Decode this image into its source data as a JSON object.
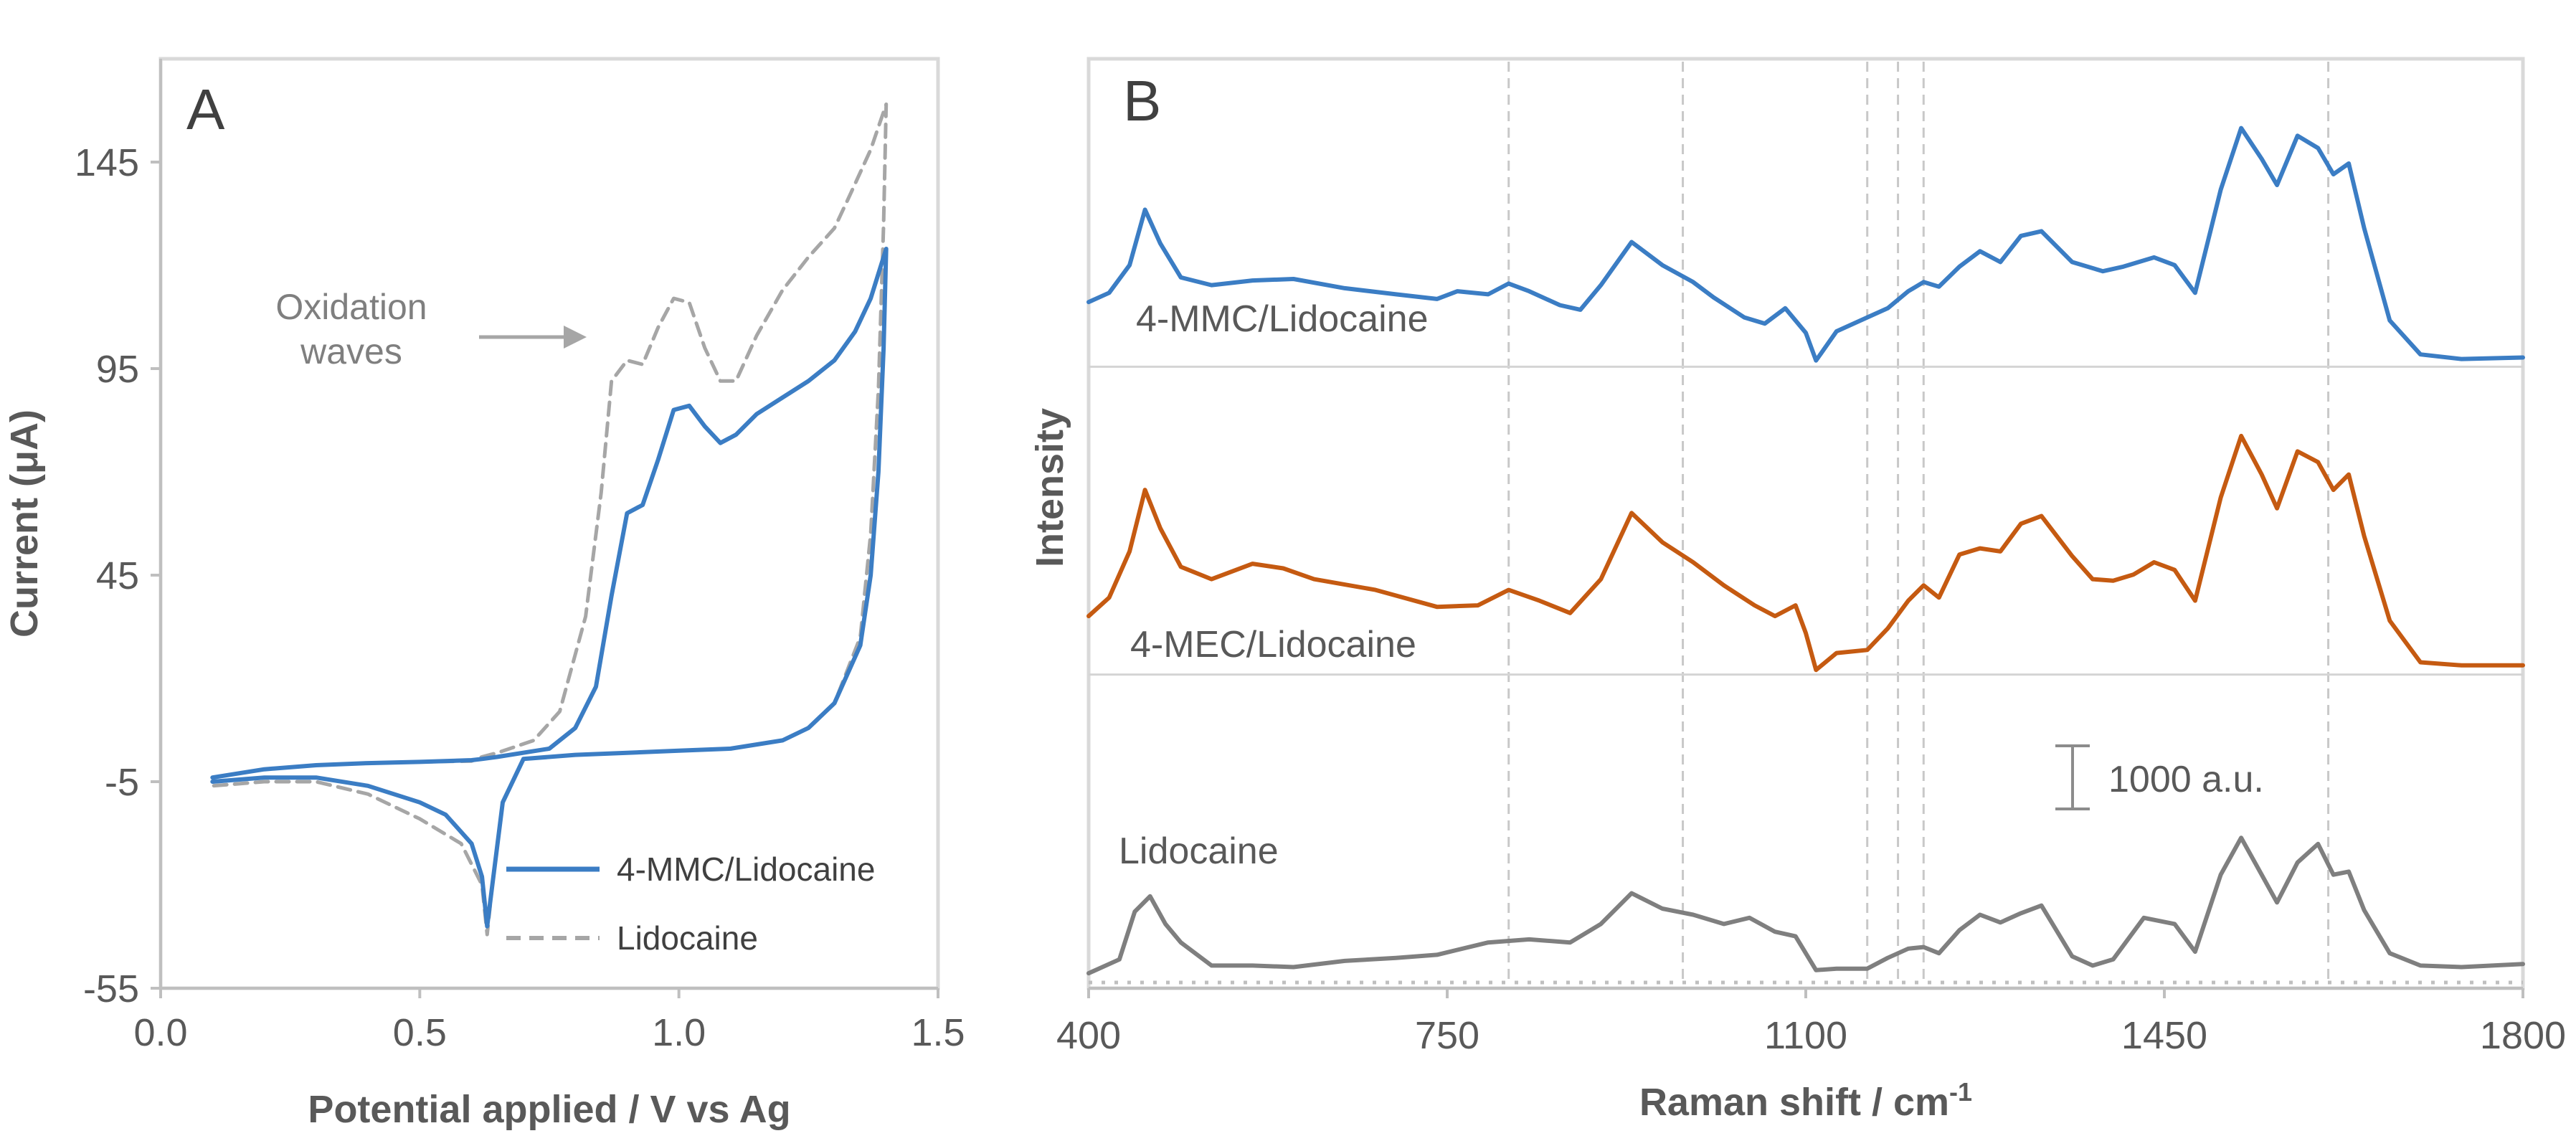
{
  "chart_data": [
    {
      "panel": "A",
      "type": "line",
      "xlabel": "Potential applied / V vs Ag",
      "ylabel": "Current (μA)",
      "xlim": [
        0.0,
        1.5
      ],
      "ylim": [
        -55,
        170
      ],
      "x_ticks": [
        "0.0",
        "0.5",
        "1.0",
        "1.5"
      ],
      "y_ticks": [
        "-55",
        "-5",
        "45",
        "95",
        "145"
      ],
      "grid": false,
      "legend_position": "bottom-right",
      "annotations": {
        "line1": "Oxidation",
        "line2": "waves"
      },
      "series": [
        {
          "name": "4-MMC/Lidocaine",
          "color": "#3b7dc4",
          "dash": "solid",
          "points": [
            [
              0.1,
              -4
            ],
            [
              0.2,
              -2
            ],
            [
              0.3,
              -1
            ],
            [
              0.4,
              -0.5
            ],
            [
              0.5,
              -0.2
            ],
            [
              0.6,
              0.2
            ],
            [
              0.62,
              0.5
            ],
            [
              0.65,
              1
            ],
            [
              0.75,
              3
            ],
            [
              0.8,
              8
            ],
            [
              0.84,
              18
            ],
            [
              0.87,
              40
            ],
            [
              0.9,
              60
            ],
            [
              0.93,
              62
            ],
            [
              0.96,
              73
            ],
            [
              0.99,
              85
            ],
            [
              1.02,
              86
            ],
            [
              1.05,
              81
            ],
            [
              1.08,
              77
            ],
            [
              1.11,
              79
            ],
            [
              1.15,
              84
            ],
            [
              1.2,
              88
            ],
            [
              1.25,
              92
            ],
            [
              1.3,
              97
            ],
            [
              1.34,
              104
            ],
            [
              1.37,
              112
            ],
            [
              1.4,
              124
            ],
            [
              1.395,
              100
            ],
            [
              1.385,
              70
            ],
            [
              1.37,
              45
            ],
            [
              1.35,
              28
            ],
            [
              1.3,
              14
            ],
            [
              1.25,
              8
            ],
            [
              1.2,
              5
            ],
            [
              1.1,
              3
            ],
            [
              1.0,
              2.5
            ],
            [
              0.9,
              2
            ],
            [
              0.8,
              1.5
            ],
            [
              0.7,
              0.5
            ],
            [
              0.66,
              -10
            ],
            [
              0.64,
              -30
            ],
            [
              0.63,
              -40
            ],
            [
              0.62,
              -28
            ],
            [
              0.6,
              -20
            ],
            [
              0.55,
              -13
            ],
            [
              0.5,
              -10
            ],
            [
              0.4,
              -6
            ],
            [
              0.3,
              -4
            ],
            [
              0.2,
              -4
            ],
            [
              0.1,
              -5
            ]
          ]
        },
        {
          "name": "Lidocaine",
          "color": "#a6a6a6",
          "dash": "dashed",
          "points": [
            [
              0.1,
              -4
            ],
            [
              0.2,
              -2
            ],
            [
              0.3,
              -1
            ],
            [
              0.4,
              -0.5
            ],
            [
              0.5,
              -0.2
            ],
            [
              0.6,
              0
            ],
            [
              0.62,
              1
            ],
            [
              0.65,
              2
            ],
            [
              0.72,
              5
            ],
            [
              0.77,
              12
            ],
            [
              0.82,
              35
            ],
            [
              0.85,
              65
            ],
            [
              0.87,
              92
            ],
            [
              0.9,
              97
            ],
            [
              0.93,
              96
            ],
            [
              0.96,
              105
            ],
            [
              0.99,
              112
            ],
            [
              1.02,
              111
            ],
            [
              1.05,
              100
            ],
            [
              1.08,
              92
            ],
            [
              1.11,
              92
            ],
            [
              1.15,
              103
            ],
            [
              1.2,
              114
            ],
            [
              1.25,
              122
            ],
            [
              1.3,
              129
            ],
            [
              1.33,
              137
            ],
            [
              1.37,
              148
            ],
            [
              1.4,
              159
            ],
            [
              1.395,
              130
            ],
            [
              1.385,
              90
            ],
            [
              1.37,
              55
            ],
            [
              1.35,
              30
            ],
            [
              1.3,
              14
            ],
            [
              1.25,
              8
            ],
            [
              1.2,
              5
            ],
            [
              1.1,
              3
            ],
            [
              1.0,
              2.5
            ],
            [
              0.9,
              2
            ],
            [
              0.8,
              1.5
            ],
            [
              0.7,
              0.5
            ],
            [
              0.66,
              -10
            ],
            [
              0.64,
              -30
            ],
            [
              0.63,
              -42
            ],
            [
              0.62,
              -30
            ],
            [
              0.58,
              -20
            ],
            [
              0.5,
              -14
            ],
            [
              0.4,
              -8
            ],
            [
              0.3,
              -5
            ],
            [
              0.2,
              -5
            ],
            [
              0.1,
              -6
            ]
          ]
        }
      ]
    },
    {
      "panel": "B",
      "type": "line",
      "xlabel": "Raman shift / cm",
      "xlabel_superscript": "-1",
      "ylabel": "Intensity",
      "xlim": [
        400,
        1800
      ],
      "ylim": [
        0,
        6000
      ],
      "x_ticks": [
        "400",
        "750",
        "1100",
        "1450",
        "1800"
      ],
      "grid": false,
      "reference_lines_x": [
        810,
        980,
        1160,
        1190,
        1215,
        1610
      ],
      "scale_bar": {
        "value": 1000,
        "label": "1000 a.u."
      },
      "series": [
        {
          "name": "4-MMC/Lidocaine",
          "color": "#3b7dc4",
          "baseline": 4000,
          "points": [
            [
              400,
              4420
            ],
            [
              420,
              4480
            ],
            [
              440,
              4660
            ],
            [
              455,
              5020
            ],
            [
              470,
              4800
            ],
            [
              490,
              4580
            ],
            [
              520,
              4530
            ],
            [
              560,
              4560
            ],
            [
              600,
              4570
            ],
            [
              650,
              4510
            ],
            [
              700,
              4470
            ],
            [
              740,
              4440
            ],
            [
              760,
              4490
            ],
            [
              790,
              4470
            ],
            [
              810,
              4540
            ],
            [
              830,
              4490
            ],
            [
              860,
              4400
            ],
            [
              880,
              4370
            ],
            [
              900,
              4530
            ],
            [
              930,
              4810
            ],
            [
              960,
              4660
            ],
            [
              990,
              4550
            ],
            [
              1010,
              4450
            ],
            [
              1040,
              4320
            ],
            [
              1060,
              4280
            ],
            [
              1080,
              4380
            ],
            [
              1100,
              4220
            ],
            [
              1110,
              4040
            ],
            [
              1130,
              4230
            ],
            [
              1160,
              4320
            ],
            [
              1180,
              4380
            ],
            [
              1200,
              4490
            ],
            [
              1215,
              4550
            ],
            [
              1230,
              4520
            ],
            [
              1250,
              4650
            ],
            [
              1270,
              4750
            ],
            [
              1290,
              4680
            ],
            [
              1310,
              4850
            ],
            [
              1330,
              4880
            ],
            [
              1360,
              4680
            ],
            [
              1390,
              4620
            ],
            [
              1410,
              4650
            ],
            [
              1440,
              4710
            ],
            [
              1460,
              4660
            ],
            [
              1480,
              4480
            ],
            [
              1505,
              5150
            ],
            [
              1525,
              5550
            ],
            [
              1545,
              5350
            ],
            [
              1560,
              5180
            ],
            [
              1580,
              5500
            ],
            [
              1600,
              5420
            ],
            [
              1615,
              5250
            ],
            [
              1630,
              5320
            ],
            [
              1645,
              4900
            ],
            [
              1670,
              4300
            ],
            [
              1700,
              4080
            ],
            [
              1740,
              4050
            ],
            [
              1800,
              4060
            ]
          ]
        },
        {
          "name": "4-MEC/Lidocaine",
          "color": "#c55a11",
          "baseline": 2000,
          "points": [
            [
              400,
              2380
            ],
            [
              420,
              2500
            ],
            [
              440,
              2800
            ],
            [
              455,
              3200
            ],
            [
              470,
              2950
            ],
            [
              490,
              2700
            ],
            [
              520,
              2620
            ],
            [
              560,
              2720
            ],
            [
              590,
              2690
            ],
            [
              620,
              2620
            ],
            [
              680,
              2550
            ],
            [
              740,
              2440
            ],
            [
              780,
              2450
            ],
            [
              810,
              2550
            ],
            [
              840,
              2480
            ],
            [
              870,
              2400
            ],
            [
              900,
              2620
            ],
            [
              930,
              3050
            ],
            [
              960,
              2860
            ],
            [
              990,
              2730
            ],
            [
              1020,
              2580
            ],
            [
              1050,
              2450
            ],
            [
              1070,
              2380
            ],
            [
              1090,
              2450
            ],
            [
              1100,
              2270
            ],
            [
              1110,
              2030
            ],
            [
              1130,
              2140
            ],
            [
              1160,
              2160
            ],
            [
              1180,
              2300
            ],
            [
              1200,
              2480
            ],
            [
              1215,
              2580
            ],
            [
              1230,
              2500
            ],
            [
              1250,
              2780
            ],
            [
              1270,
              2820
            ],
            [
              1290,
              2800
            ],
            [
              1310,
              2980
            ],
            [
              1330,
              3030
            ],
            [
              1360,
              2770
            ],
            [
              1380,
              2620
            ],
            [
              1400,
              2610
            ],
            [
              1420,
              2650
            ],
            [
              1440,
              2730
            ],
            [
              1460,
              2680
            ],
            [
              1480,
              2480
            ],
            [
              1505,
              3150
            ],
            [
              1525,
              3550
            ],
            [
              1545,
              3300
            ],
            [
              1560,
              3080
            ],
            [
              1580,
              3450
            ],
            [
              1600,
              3380
            ],
            [
              1615,
              3200
            ],
            [
              1630,
              3300
            ],
            [
              1645,
              2900
            ],
            [
              1670,
              2350
            ],
            [
              1700,
              2080
            ],
            [
              1740,
              2060
            ],
            [
              1800,
              2060
            ]
          ]
        },
        {
          "name": "Lidocaine",
          "color": "#7f7f7f",
          "baseline": 0,
          "points": [
            [
              400,
              60
            ],
            [
              430,
              150
            ],
            [
              445,
              460
            ],
            [
              460,
              560
            ],
            [
              475,
              380
            ],
            [
              490,
              260
            ],
            [
              520,
              110
            ],
            [
              560,
              110
            ],
            [
              600,
              100
            ],
            [
              650,
              140
            ],
            [
              700,
              160
            ],
            [
              740,
              180
            ],
            [
              790,
              260
            ],
            [
              830,
              280
            ],
            [
              870,
              260
            ],
            [
              900,
              380
            ],
            [
              930,
              580
            ],
            [
              960,
              480
            ],
            [
              990,
              440
            ],
            [
              1020,
              380
            ],
            [
              1045,
              420
            ],
            [
              1070,
              330
            ],
            [
              1090,
              300
            ],
            [
              1110,
              80
            ],
            [
              1130,
              90
            ],
            [
              1160,
              90
            ],
            [
              1180,
              160
            ],
            [
              1200,
              220
            ],
            [
              1215,
              230
            ],
            [
              1230,
              190
            ],
            [
              1250,
              340
            ],
            [
              1270,
              440
            ],
            [
              1290,
              390
            ],
            [
              1310,
              450
            ],
            [
              1330,
              500
            ],
            [
              1360,
              170
            ],
            [
              1380,
              110
            ],
            [
              1400,
              150
            ],
            [
              1430,
              420
            ],
            [
              1460,
              380
            ],
            [
              1480,
              200
            ],
            [
              1505,
              700
            ],
            [
              1525,
              940
            ],
            [
              1545,
              700
            ],
            [
              1560,
              520
            ],
            [
              1580,
              780
            ],
            [
              1600,
              900
            ],
            [
              1615,
              700
            ],
            [
              1630,
              720
            ],
            [
              1645,
              470
            ],
            [
              1670,
              190
            ],
            [
              1700,
              110
            ],
            [
              1740,
              100
            ],
            [
              1800,
              120
            ]
          ]
        }
      ]
    }
  ]
}
